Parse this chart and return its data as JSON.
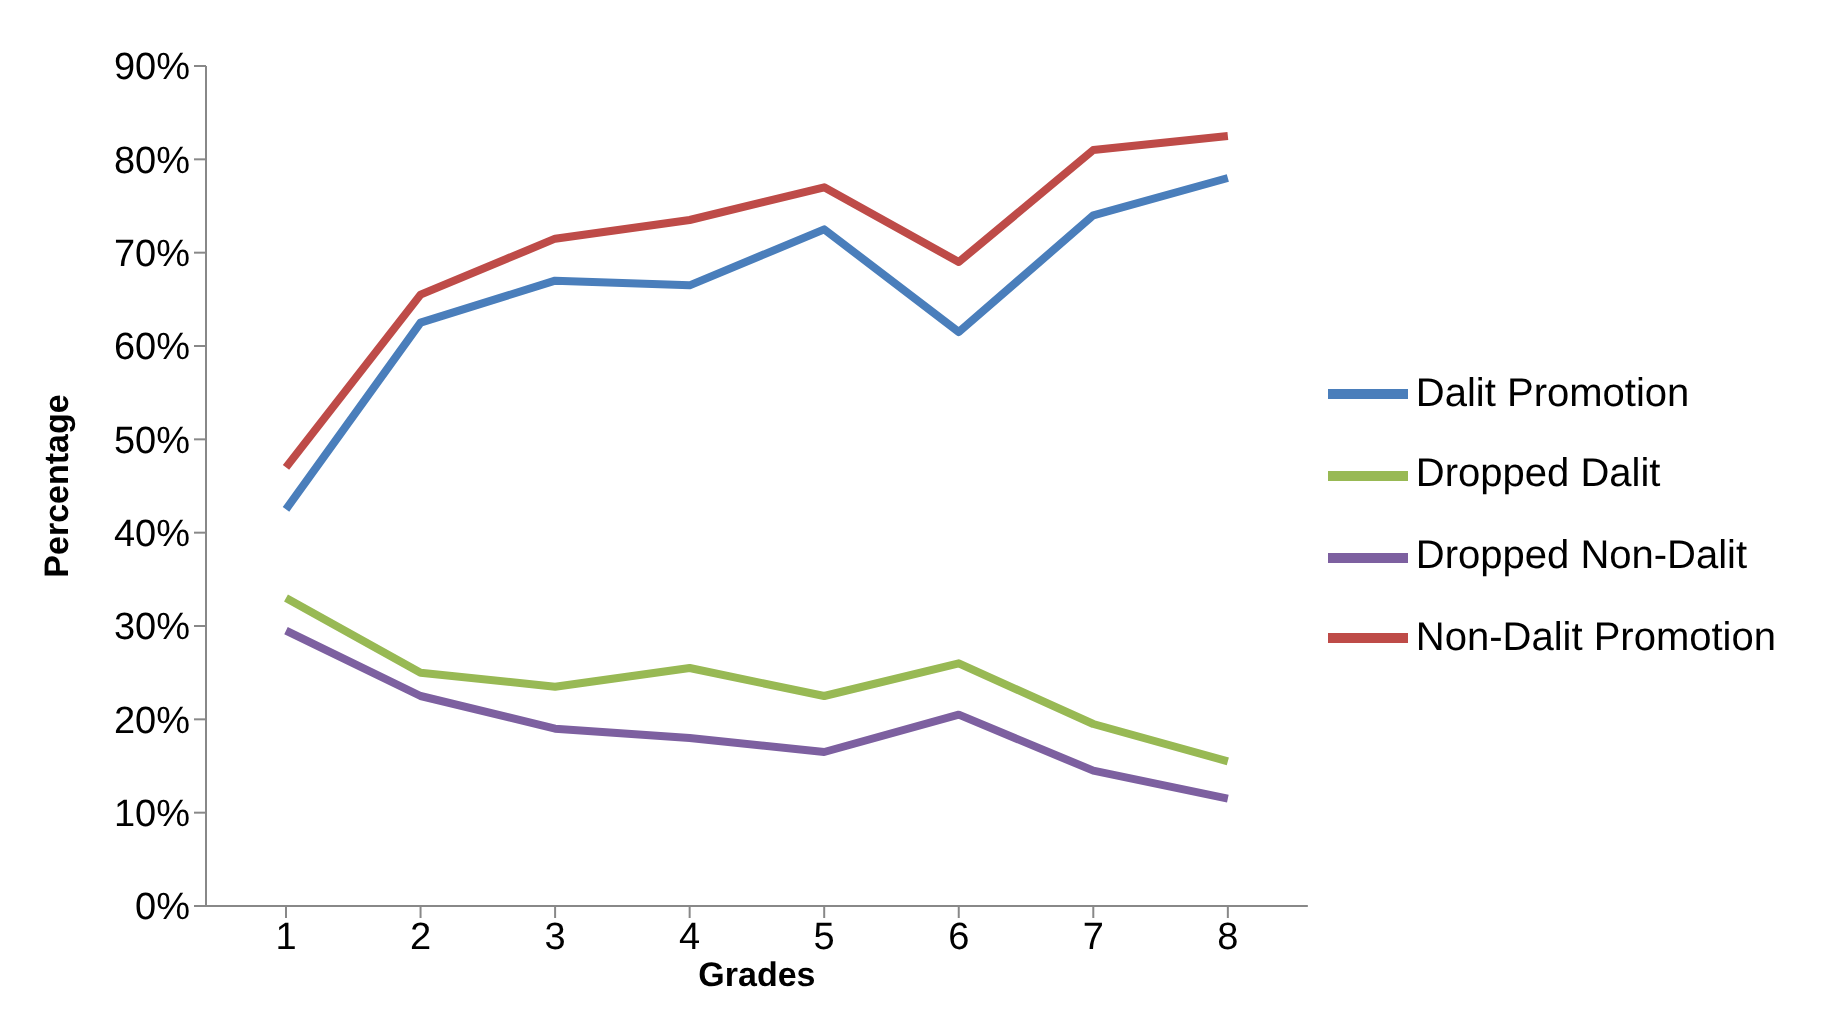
{
  "chart_data": {
    "type": "line",
    "xlabel": "Grades",
    "ylabel": "Percentage",
    "categories": [
      "1",
      "2",
      "3",
      "4",
      "5",
      "6",
      "7",
      "8"
    ],
    "series": [
      {
        "name": "Dalit Promotion",
        "color": "#4a7ebb",
        "values": [
          42.5,
          62.5,
          67,
          66.5,
          72.5,
          61.5,
          74,
          78
        ]
      },
      {
        "name": "Non-Dalit Promotion",
        "color": "#be4b48",
        "values": [
          47,
          65.5,
          71.5,
          73.5,
          77,
          69,
          81,
          82.5
        ]
      },
      {
        "name": "Dropped Dalit",
        "color": "#98b954",
        "values": [
          33,
          25,
          23.5,
          25.5,
          22.5,
          26,
          19.5,
          15.5
        ]
      },
      {
        "name": "Dropped Non-Dalit",
        "color": "#7d60a0",
        "values": [
          29.5,
          22.5,
          19,
          18,
          16.5,
          20.5,
          14.5,
          11.5
        ]
      }
    ],
    "ylim": [
      0,
      90
    ],
    "yticks": [
      {
        "value": 0,
        "label": "0%"
      },
      {
        "value": 10,
        "label": "10%"
      },
      {
        "value": 20,
        "label": "20%"
      },
      {
        "value": 30,
        "label": "30%"
      },
      {
        "value": 40,
        "label": "40%"
      },
      {
        "value": 50,
        "label": "50%"
      },
      {
        "value": 60,
        "label": "60%"
      },
      {
        "value": 70,
        "label": "70%"
      },
      {
        "value": 80,
        "label": "80%"
      },
      {
        "value": 90,
        "label": "90%"
      }
    ],
    "legend": "right",
    "marker": "none",
    "line_style": "solid"
  }
}
